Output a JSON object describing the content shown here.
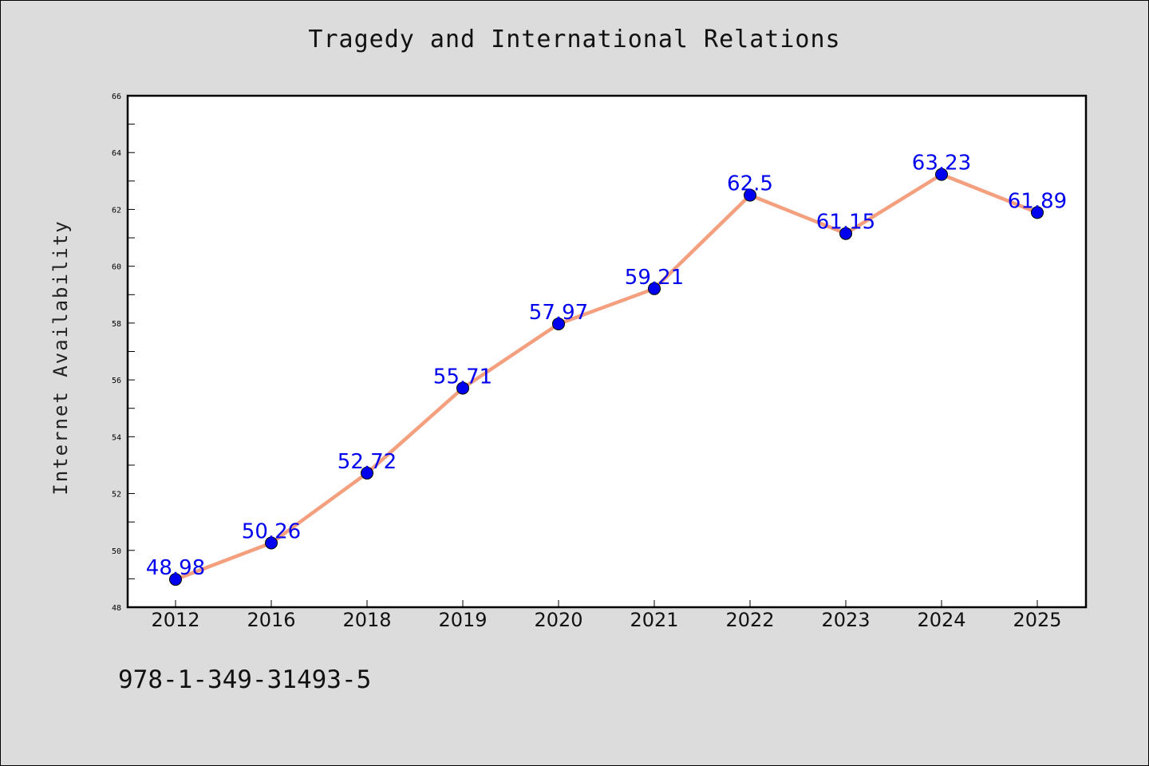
{
  "chart_data": {
    "type": "line",
    "title": "Tragedy and International Relations",
    "xlabel": "",
    "ylabel": "Internet Availability",
    "categories": [
      "2012",
      "2016",
      "2018",
      "2019",
      "2020",
      "2021",
      "2022",
      "2023",
      "2024",
      "2025"
    ],
    "series": [
      {
        "values": [
          48.98,
          50.26,
          52.72,
          55.71,
          57.97,
          59.21,
          62.5,
          61.15,
          63.23,
          61.89
        ],
        "labels": [
          "48.98",
          "50.26",
          "52.72",
          "55.71",
          "57.97",
          "59.21",
          "62.5",
          "61.15",
          "63.23",
          "61.89"
        ],
        "line_color": "#f4a07f",
        "marker_color": "#0000ee",
        "label_color": "#0000ee"
      }
    ],
    "ylim": [
      48,
      66
    ],
    "yticks": [
      "48",
      "50",
      "52",
      "54",
      "56",
      "58",
      "60",
      "62",
      "64",
      "66"
    ],
    "grid": false,
    "legend": "none"
  },
  "footnote": "978-1-349-31493-5",
  "colors": {
    "background": "#dcdcdc",
    "plot_background": "#ffffff",
    "axis": "#000000"
  }
}
